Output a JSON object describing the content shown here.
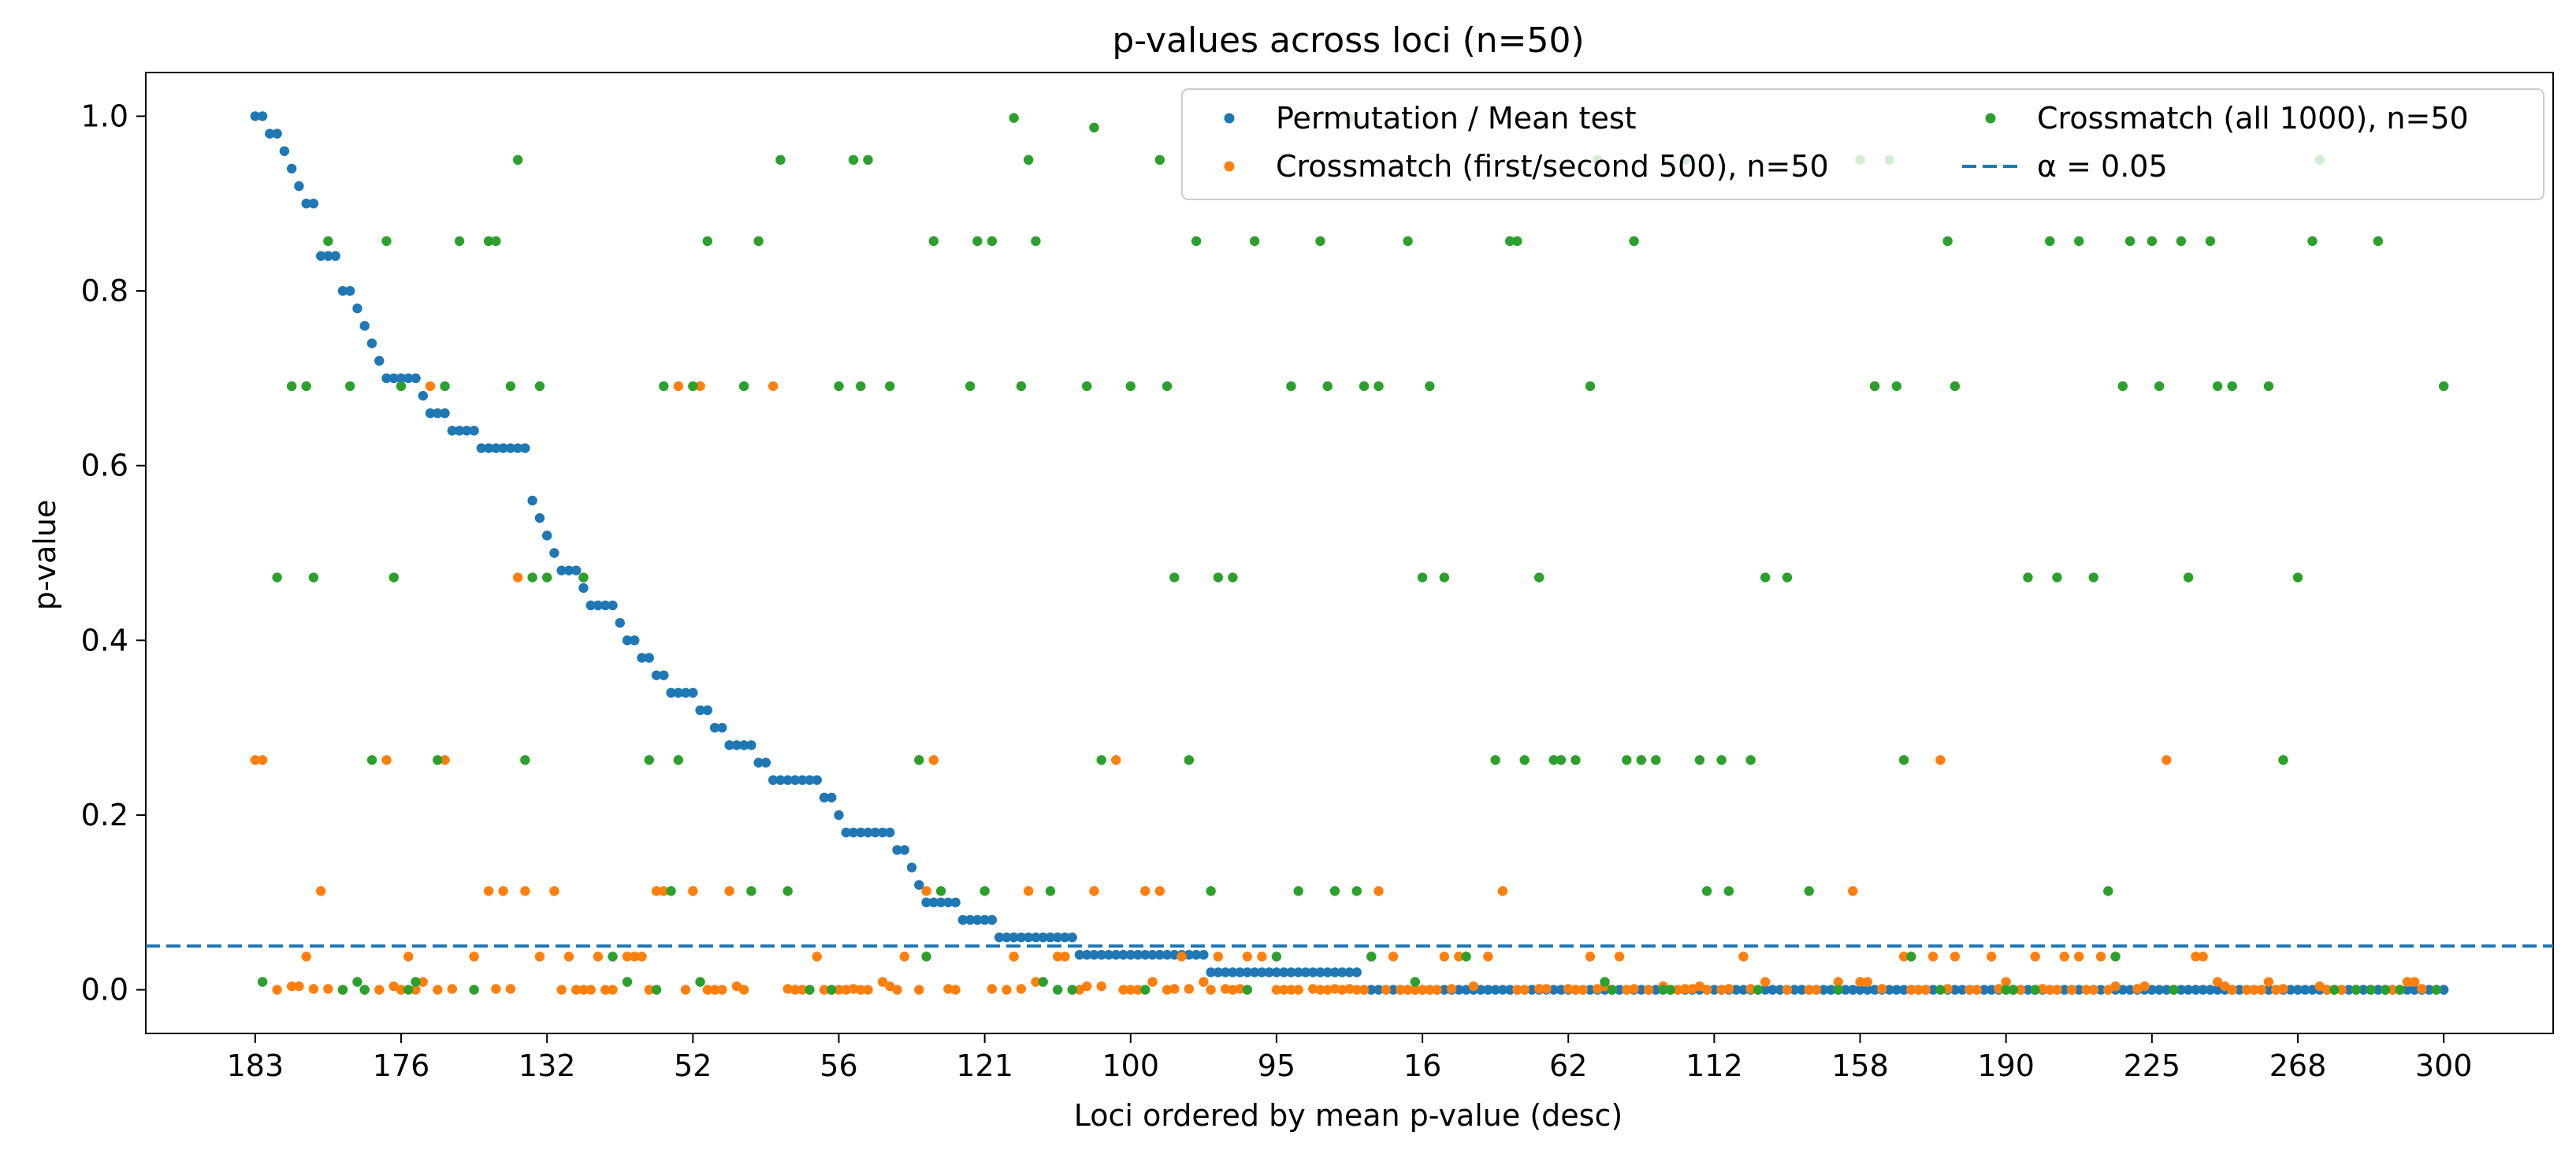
{
  "chart_data": {
    "type": "scatter",
    "title": "p-values across loci (n=50)",
    "xlabel": "Loci ordered by mean p-value (desc)",
    "ylabel": "p-value",
    "ylim": [
      -0.05,
      1.05
    ],
    "xlim": [
      -15,
      315
    ],
    "n_loci": 301,
    "xtick_positions": [
      0,
      20,
      40,
      60,
      80,
      100,
      120,
      140,
      160,
      180,
      200,
      220,
      240,
      260,
      280,
      300
    ],
    "xtick_labels": [
      "183",
      "176",
      "132",
      "52",
      "56",
      "121",
      "100",
      "95",
      "16",
      "62",
      "112",
      "158",
      "190",
      "225",
      "268",
      "300"
    ],
    "ytick_values": [
      0.0,
      0.2,
      0.4,
      0.6,
      0.8,
      1.0
    ],
    "ytick_labels": [
      "0.0",
      "0.2",
      "0.4",
      "0.6",
      "0.8",
      "1.0"
    ],
    "grid": false,
    "legend_position": "upper-right",
    "reference_line": {
      "y": 0.05,
      "label": "α = 0.05",
      "color": "#1f77b4",
      "style": "dashed"
    },
    "series": [
      {
        "name": "Permutation / Mean test",
        "color": "#1f77b4",
        "marker": "dot",
        "description_of_values": "monotonically decreasing mean p-value per locus",
        "breakpoints": [
          [
            0,
            1.0
          ],
          [
            2,
            0.98
          ],
          [
            4,
            0.96
          ],
          [
            5,
            0.94
          ],
          [
            6,
            0.92
          ],
          [
            7,
            0.9
          ],
          [
            9,
            0.84
          ],
          [
            12,
            0.8
          ],
          [
            14,
            0.78
          ],
          [
            15,
            0.76
          ],
          [
            16,
            0.74
          ],
          [
            17,
            0.72
          ],
          [
            18,
            0.7
          ],
          [
            22,
            0.7
          ],
          [
            23,
            0.68
          ],
          [
            24,
            0.66
          ],
          [
            27,
            0.64
          ],
          [
            31,
            0.62
          ],
          [
            37,
            0.62
          ],
          [
            38,
            0.56
          ],
          [
            39,
            0.54
          ],
          [
            40,
            0.52
          ],
          [
            41,
            0.5
          ],
          [
            42,
            0.48
          ],
          [
            45,
            0.46
          ],
          [
            46,
            0.44
          ],
          [
            50,
            0.42
          ],
          [
            51,
            0.4
          ],
          [
            53,
            0.38
          ],
          [
            55,
            0.36
          ],
          [
            57,
            0.34
          ],
          [
            61,
            0.32
          ],
          [
            63,
            0.3
          ],
          [
            65,
            0.28
          ],
          [
            69,
            0.26
          ],
          [
            71,
            0.24
          ],
          [
            78,
            0.22
          ],
          [
            80,
            0.2
          ],
          [
            81,
            0.18
          ],
          [
            88,
            0.16
          ],
          [
            90,
            0.14
          ],
          [
            91,
            0.12
          ],
          [
            92,
            0.1
          ],
          [
            97,
            0.08
          ],
          [
            102,
            0.06
          ],
          [
            112,
            0.06
          ],
          [
            113,
            0.04
          ],
          [
            130,
            0.04
          ],
          [
            131,
            0.02
          ],
          [
            151,
            0.02
          ],
          [
            152,
            0.0
          ],
          [
            300,
            0.0
          ]
        ]
      },
      {
        "name": "Crossmatch (first/second 500), n=50",
        "color": "#ff7f0e",
        "marker": "dot",
        "levels": [
          0.0,
          0.001,
          0.004,
          0.009,
          0.038,
          0.113,
          0.263,
          0.472,
          0.691
        ],
        "level_weights": [
          38,
          12,
          10,
          8,
          14,
          9,
          4,
          3,
          2
        ],
        "seed": 7
      },
      {
        "name": "Crossmatch (all 1000), n=50",
        "color": "#2ca02c",
        "marker": "dot",
        "levels": [
          0.0,
          0.009,
          0.038,
          0.113,
          0.263,
          0.472,
          0.691,
          0.857,
          0.95,
          0.987,
          0.998
        ],
        "level_weights": [
          14,
          2,
          3,
          6,
          14,
          17,
          18,
          15,
          6,
          2,
          1
        ],
        "seed": 13
      }
    ]
  }
}
